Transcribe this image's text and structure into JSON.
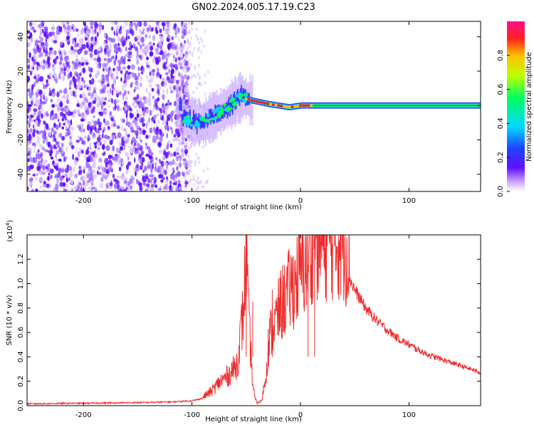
{
  "title": "GN02.2024.005.17.19.C23",
  "chart_data": [
    {
      "type": "heatmap",
      "name": "spectrogram",
      "xlabel": "Height of straight line (km)",
      "ylabel": "Frequency (Hz)",
      "xlim": [
        -252,
        166
      ],
      "ylim": [
        -50,
        49
      ],
      "xticks": [
        -200,
        -100,
        0,
        100
      ],
      "xtick_labels": [
        "-200",
        "-100",
        "0",
        "100"
      ],
      "yticks": [
        40,
        20,
        0,
        -20,
        -40
      ],
      "ytick_labels": [
        "40",
        "20",
        "0",
        "-20",
        "-40"
      ],
      "colorbar": {
        "label": "Normalized spectral amplitude",
        "range": [
          0,
          1
        ],
        "ticks": [
          0.0,
          0.2,
          0.4,
          0.6,
          0.8
        ],
        "tick_labels": [
          "0.0",
          "0.2",
          "0.4",
          "0.6",
          "0.8"
        ],
        "colormap": [
          "#ffffff",
          "#c8a0ff",
          "#6010ff",
          "#2040ff",
          "#00d8ff",
          "#00ff60",
          "#c0ff00",
          "#ffc000",
          "#ff2020",
          "#ff1090"
        ]
      },
      "features": [
        {
          "region": "noise",
          "x_range": [
            -252,
            -102
          ],
          "freq_range": [
            -50,
            49
          ],
          "amplitude": 0.15
        },
        {
          "region": "signal",
          "x_range": [
            -115,
            166
          ],
          "description_points": [
            [
              -110,
              -8
            ],
            [
              -90,
              -10
            ],
            [
              -70,
              -2
            ],
            [
              -55,
              5
            ],
            [
              -45,
              3
            ],
            [
              -30,
              1
            ],
            [
              -10,
              -1
            ],
            [
              0,
              0
            ],
            [
              166,
              0
            ]
          ]
        }
      ]
    },
    {
      "type": "line",
      "name": "snr",
      "xlabel": "Height of straight line (km)",
      "ylabel": "SNR (10 * v/v)",
      "scale_label": "(x10",
      "scale_exp": "4",
      "scale_close": ")",
      "xlim": [
        -252,
        166
      ],
      "ylim": [
        0,
        1.4
      ],
      "xticks": [
        -200,
        -100,
        0,
        100
      ],
      "xtick_labels": [
        "-200",
        "-100",
        "0",
        "100"
      ],
      "yticks": [
        0.0,
        0.2,
        0.4,
        0.6,
        0.8,
        1.0,
        1.2
      ],
      "ytick_labels": [
        "0.0",
        "0.2",
        "0.4",
        "0.6",
        "0.8",
        "1.0",
        "1.2"
      ],
      "color": "#ee2c2c",
      "series": [
        {
          "name": "SNR",
          "x": [
            -252,
            -200,
            -150,
            -120,
            -100,
            -90,
            -82,
            -75,
            -68,
            -62,
            -58,
            -55,
            -52,
            -50,
            -48,
            -46,
            -44,
            -42,
            -40,
            -36,
            -32,
            -30,
            -26,
            -22,
            -18,
            -14,
            -10,
            -6,
            -2,
            2,
            6,
            10,
            13,
            16,
            20,
            25,
            30,
            35,
            40,
            45,
            50,
            60,
            70,
            80,
            90,
            100,
            110,
            120,
            130,
            140,
            150,
            160,
            166
          ],
          "y": [
            0.015,
            0.02,
            0.025,
            0.03,
            0.04,
            0.06,
            0.1,
            0.16,
            0.2,
            0.25,
            0.3,
            0.5,
            0.7,
            1.2,
            0.6,
            0.4,
            0.15,
            0.05,
            0.02,
            0.03,
            0.2,
            0.4,
            0.55,
            0.6,
            0.7,
            0.75,
            0.8,
            0.85,
            0.9,
            0.95,
            1.0,
            1.05,
            1.38,
            1.1,
            1.12,
            1.15,
            1.16,
            1.15,
            1.13,
            1.05,
            0.95,
            0.8,
            0.7,
            0.62,
            0.55,
            0.5,
            0.45,
            0.41,
            0.38,
            0.35,
            0.32,
            0.29,
            0.27
          ]
        }
      ]
    }
  ]
}
